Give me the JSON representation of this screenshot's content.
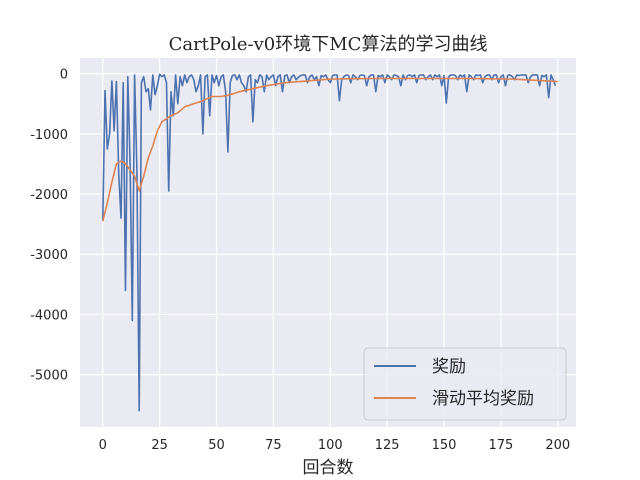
{
  "chart_data": {
    "type": "line",
    "title": "CartPole-v0环境下MC算法的学习曲线",
    "xlabel": "回合数",
    "ylabel": "",
    "xlim": [
      -10,
      208
    ],
    "ylim": [
      -5870,
      260
    ],
    "xticks": [
      0,
      25,
      50,
      75,
      100,
      125,
      150,
      175,
      200
    ],
    "yticks": [
      0,
      -1000,
      -2000,
      -3000,
      -4000,
      -5000
    ],
    "grid": true,
    "legend_position": "lower-right",
    "series": [
      {
        "name": "奖励",
        "color": "#4c72b0",
        "x": [
          0,
          1,
          2,
          3,
          4,
          5,
          6,
          7,
          8,
          9,
          10,
          11,
          12,
          13,
          14,
          15,
          16,
          17,
          18,
          19,
          20,
          21,
          22,
          23,
          24,
          25,
          26,
          27,
          28,
          29,
          30,
          31,
          32,
          33,
          34,
          35,
          36,
          37,
          38,
          39,
          40,
          41,
          42,
          43,
          44,
          45,
          46,
          47,
          48,
          49,
          50,
          51,
          52,
          53,
          54,
          55,
          56,
          57,
          58,
          59,
          60,
          61,
          62,
          63,
          64,
          65,
          66,
          67,
          68,
          69,
          70,
          71,
          72,
          73,
          74,
          75,
          76,
          77,
          78,
          79,
          80,
          81,
          82,
          83,
          84,
          85,
          86,
          87,
          88,
          89,
          90,
          91,
          92,
          93,
          94,
          95,
          96,
          97,
          98,
          99,
          100,
          101,
          102,
          103,
          104,
          105,
          106,
          107,
          108,
          109,
          110,
          111,
          112,
          113,
          114,
          115,
          116,
          117,
          118,
          119,
          120,
          121,
          122,
          123,
          124,
          125,
          126,
          127,
          128,
          129,
          130,
          131,
          132,
          133,
          134,
          135,
          136,
          137,
          138,
          139,
          140,
          141,
          142,
          143,
          144,
          145,
          146,
          147,
          148,
          149,
          150,
          151,
          152,
          153,
          154,
          155,
          156,
          157,
          158,
          159,
          160,
          161,
          162,
          163,
          164,
          165,
          166,
          167,
          168,
          169,
          170,
          171,
          172,
          173,
          174,
          175,
          176,
          177,
          178,
          179,
          180,
          181,
          182,
          183,
          184,
          185,
          186,
          187,
          188,
          189,
          190,
          191,
          192,
          193,
          194,
          195,
          196,
          197,
          198,
          199
        ],
        "values": [
          -2450,
          -280,
          -1250,
          -1000,
          -120,
          -950,
          -130,
          -1650,
          -2400,
          -150,
          -3600,
          -50,
          -1500,
          -4100,
          -20,
          -1600,
          -5600,
          -150,
          -50,
          -300,
          -250,
          -600,
          -20,
          -350,
          -200,
          -10,
          -50,
          -20,
          -150,
          -1950,
          -300,
          -700,
          -20,
          -500,
          -50,
          -200,
          -20,
          -150,
          -50,
          -20,
          -100,
          -300,
          -200,
          -20,
          -1000,
          -50,
          -20,
          -700,
          -20,
          -150,
          -30,
          -200,
          -50,
          -20,
          -300,
          -1300,
          -150,
          -30,
          -20,
          -100,
          -20,
          -150,
          -200,
          -300,
          -50,
          -20,
          -800,
          -100,
          -150,
          -20,
          -50,
          -300,
          -20,
          -100,
          -50,
          -20,
          -200,
          -50,
          -20,
          -300,
          -30,
          -20,
          -150,
          -50,
          -20,
          -100,
          -60,
          -30,
          -20,
          -20,
          -150,
          -50,
          -20,
          -100,
          -50,
          -200,
          -30,
          -50,
          -20,
          -100,
          -150,
          -30,
          -20,
          -20,
          -450,
          -100,
          -50,
          -20,
          -30,
          -150,
          -20,
          -50,
          -100,
          -30,
          -20,
          -30,
          -200,
          -50,
          -20,
          -20,
          -300,
          -30,
          -50,
          -20,
          -150,
          -20,
          -50,
          -100,
          -20,
          -30,
          -50,
          -200,
          -20,
          -100,
          -30,
          -20,
          -50,
          -20,
          -150,
          -30,
          -20,
          -20,
          -100,
          -50,
          -20,
          -100,
          -20,
          -50,
          -20,
          -200,
          -30,
          -490,
          -50,
          -20,
          -20,
          -30,
          -100,
          -20,
          -50,
          -20,
          -300,
          -20,
          -50,
          -100,
          -20,
          -30,
          -20,
          -150,
          -50,
          -20,
          -20,
          -100,
          -20,
          -20,
          -150,
          -50,
          -20,
          -200,
          -30,
          -20,
          -50,
          -100,
          -20,
          -30,
          -20,
          -20,
          -20,
          -150,
          -50,
          -20,
          -20,
          -20,
          -200,
          -30,
          -50,
          -20,
          -400,
          -20,
          -100,
          -200
        ],
        "values_note": ""
      },
      {
        "name": "滑动平均奖励",
        "color": "#dd8452",
        "x": [
          0,
          2,
          4,
          6,
          8,
          10,
          12,
          14,
          16,
          18,
          20,
          22,
          24,
          26,
          28,
          30,
          33,
          36,
          40,
          44,
          48,
          52,
          56,
          60,
          66,
          72,
          80,
          90,
          100,
          120,
          140,
          160,
          180,
          200
        ],
        "values": [
          -2450,
          -2150,
          -1800,
          -1500,
          -1450,
          -1500,
          -1600,
          -1700,
          -1950,
          -1700,
          -1400,
          -1200,
          -950,
          -800,
          -750,
          -700,
          -650,
          -550,
          -500,
          -450,
          -380,
          -380,
          -350,
          -300,
          -250,
          -200,
          -150,
          -120,
          -90,
          -80,
          -80,
          -80,
          -90,
          -130
        ]
      }
    ]
  }
}
